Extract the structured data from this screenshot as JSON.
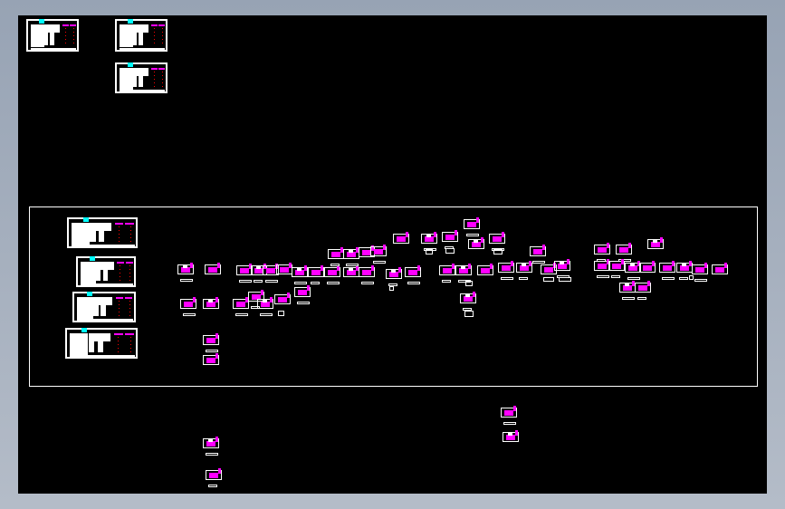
{
  "viewer": {
    "background_color": "#000000",
    "line_color": "#ffffff",
    "accent_colors": {
      "magenta": "#ff00ff",
      "cyan": "#00ffff",
      "red": "#ff0000",
      "yellow": "#ffff00"
    }
  }
}
